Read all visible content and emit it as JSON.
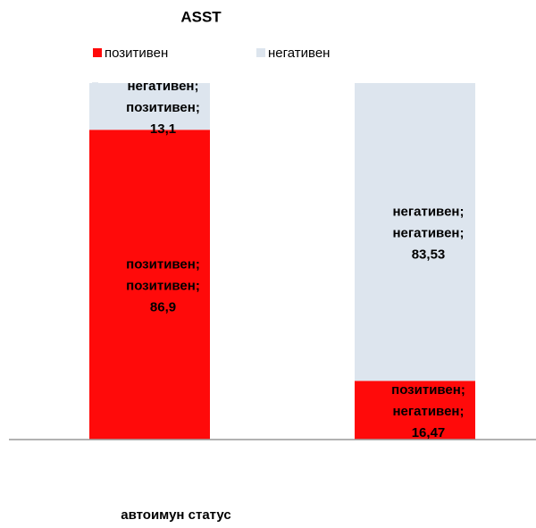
{
  "chart_data": {
    "type": "stacked_bar",
    "title": "ASST",
    "x_label": "автоимун статус",
    "categories": [
      "позитивен",
      "негативен"
    ],
    "series": [
      {
        "name": "позитивен",
        "color": "#ff0a0a",
        "values": [
          86.9,
          16.47
        ],
        "value_labels": [
          "позитивен; позитивен; 86,9",
          "позитивен; негативен; 16,47"
        ]
      },
      {
        "name": "негативен",
        "color": "#dde5ee",
        "values": [
          13.1,
          83.53
        ],
        "value_labels": [
          "негативен; позитивен; 13,1",
          "негативен; негативен; 83,53"
        ]
      }
    ],
    "ylim": [
      0,
      100
    ],
    "legend": "top"
  }
}
